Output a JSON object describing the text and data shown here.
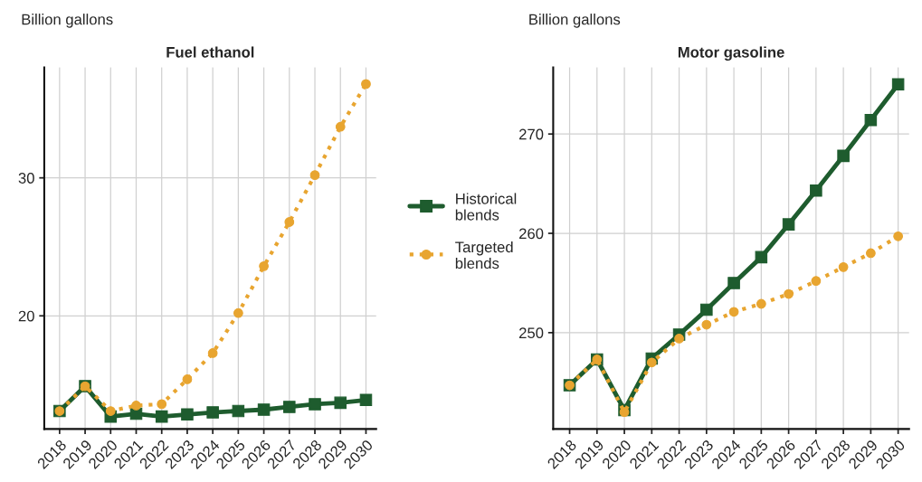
{
  "chart_data": [
    {
      "type": "line",
      "title": "Fuel ethanol",
      "ylabel": "Billion gallons",
      "categories": [
        "2018",
        "2019",
        "2020",
        "2021",
        "2022",
        "2023",
        "2024",
        "2025",
        "2026",
        "2027",
        "2028",
        "2029",
        "2030"
      ],
      "series": [
        {
          "name": "Historical blends",
          "color": "#1e5c2e",
          "marker": "square",
          "line_style": "solid",
          "values": [
            13.1,
            14.9,
            12.7,
            12.9,
            12.7,
            12.85,
            13.0,
            13.1,
            13.2,
            13.4,
            13.6,
            13.7,
            13.9
          ]
        },
        {
          "name": "Targeted blends",
          "color": "#e8a530",
          "marker": "circle",
          "line_style": "dotted",
          "values": [
            13.1,
            14.9,
            13.1,
            13.5,
            13.6,
            15.4,
            17.3,
            20.2,
            23.6,
            26.8,
            30.2,
            33.7,
            36.8
          ]
        }
      ],
      "ylim": [
        11.8,
        38
      ],
      "yticks": [
        20,
        30
      ],
      "grid": true,
      "legend": "right"
    },
    {
      "type": "line",
      "title": "Motor gasoline",
      "ylabel": "Billion gallons",
      "categories": [
        "2018",
        "2019",
        "2020",
        "2021",
        "2022",
        "2023",
        "2024",
        "2025",
        "2026",
        "2027",
        "2028",
        "2029",
        "2030"
      ],
      "series": [
        {
          "color": "#1e5c2e",
          "marker": "square",
          "line_style": "solid",
          "values": [
            244.7,
            247.3,
            242.2,
            247.4,
            249.8,
            252.3,
            255.0,
            257.6,
            260.9,
            264.3,
            267.8,
            271.4,
            275.0
          ]
        },
        {
          "color": "#e8a530",
          "marker": "circle",
          "line_style": "dotted",
          "values": [
            244.7,
            247.3,
            242.0,
            247.0,
            249.4,
            250.8,
            252.1,
            252.9,
            253.9,
            255.2,
            256.6,
            258.0,
            259.7
          ]
        }
      ],
      "ylim": [
        240.3,
        276.7
      ],
      "yticks": [
        250,
        260,
        270
      ],
      "grid": true
    }
  ]
}
